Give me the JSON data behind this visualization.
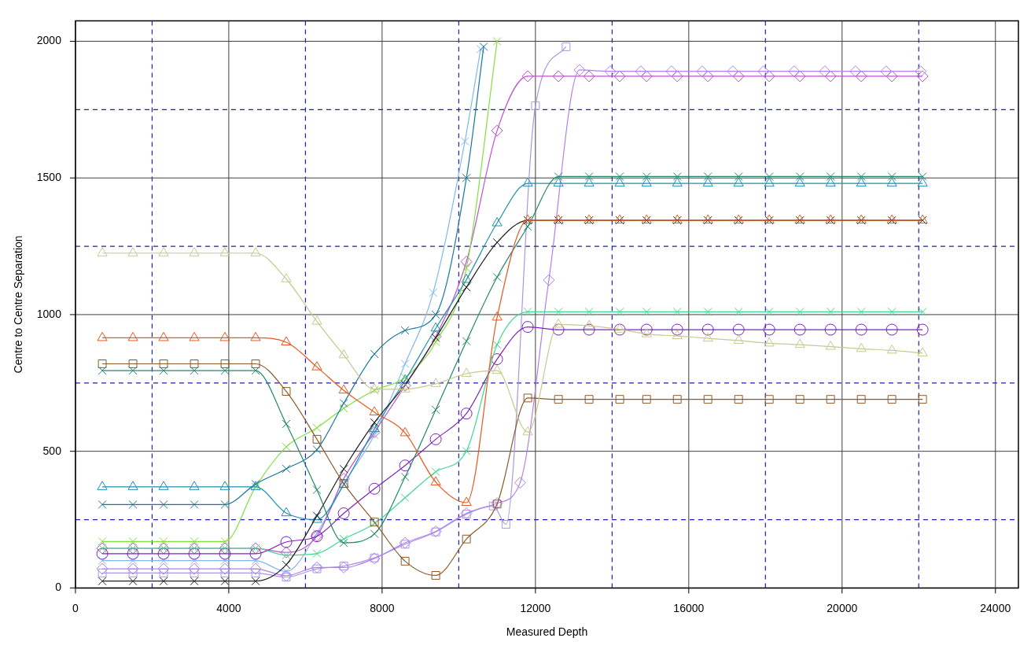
{
  "chart_data": {
    "type": "line",
    "xlabel": "Measured Depth",
    "ylabel": "Centre to Centre Separation",
    "xlim": [
      0,
      24600
    ],
    "ylim": [
      0,
      2075
    ],
    "xticks": [
      0,
      {
        "value": 2000,
        "label": null
      },
      4000,
      {
        "value": 6000,
        "label": null
      },
      8000,
      {
        "value": 10000,
        "label": null
      },
      12000,
      {
        "value": 14000,
        "label": null
      },
      16000,
      {
        "value": 18000,
        "label": null
      },
      20000,
      {
        "value": 22000,
        "label": null
      },
      24000
    ],
    "yticks": [
      0,
      {
        "value": 250,
        "label": null
      },
      500,
      {
        "value": 750,
        "label": null
      },
      1000,
      {
        "value": 1250,
        "label": null
      },
      1500,
      {
        "value": 1750,
        "label": null
      },
      2000
    ],
    "grid": true,
    "legend": false,
    "x": [
      700,
      1500,
      2300,
      3100,
      3900,
      4700,
      5500,
      6300,
      7000,
      7800,
      8600,
      9400,
      10200,
      11000,
      11800,
      12600,
      13400,
      14200,
      14900,
      15700,
      16500,
      17300,
      18100,
      18900,
      19700,
      20500,
      21300,
      22100
    ],
    "series": [
      {
        "color": "#c8c890",
        "marker": "triangle",
        "values": [
          1225,
          1225,
          1225,
          1225,
          1225,
          1225,
          1130,
          975,
          852,
          727,
          727,
          747,
          784,
          795,
          570,
          964,
          959,
          946,
          929,
          922,
          913,
          905,
          895,
          890,
          883,
          875,
          869,
          859
        ]
      },
      {
        "color": "#e8581e",
        "marker": "triangle",
        "values": [
          915,
          915,
          915,
          915,
          915,
          915,
          899,
          808,
          723,
          643,
          567,
          387,
          312,
          990,
          1345,
          1345,
          1345,
          1345,
          1345,
          1345,
          1345,
          1345,
          1345,
          1345,
          1345,
          1345,
          1345,
          1345
        ]
      },
      {
        "color": "#8b5a2b",
        "marker": "square",
        "values": [
          820,
          820,
          820,
          820,
          820,
          820,
          719,
          544,
          382,
          241,
          98,
          46,
          179,
          307,
          695,
          690,
          690,
          690,
          690,
          690,
          690,
          690,
          690,
          690,
          690,
          690,
          690,
          690
        ]
      },
      {
        "color": "#208a6a",
        "marker": "cross",
        "values": [
          795,
          795,
          795,
          795,
          795,
          795,
          600,
          359,
          165,
          198,
          406,
          652,
          903,
          1137,
          1322,
          1505,
          1505,
          1505,
          1505,
          1505,
          1505,
          1505,
          1505,
          1505,
          1505,
          1505,
          1505,
          1505
        ]
      },
      {
        "color": "#202020",
        "marker": "cross",
        "values": [
          25,
          25,
          25,
          25,
          25,
          25,
          85,
          264,
          435,
          605,
          744,
          915,
          1100,
          1264,
          1345,
          1345,
          1345,
          1345,
          1345,
          1345,
          1345,
          1345,
          1345,
          1345,
          1345,
          1345,
          1345,
          1345
        ]
      },
      {
        "color": "#1e90b0",
        "marker": "triangle",
        "values": [
          370,
          370,
          370,
          370,
          370,
          370,
          274,
          250,
          378,
          582,
          760,
          950,
          1128,
          1335,
          1480,
          1480,
          1480,
          1480,
          1480,
          1480,
          1480,
          1480,
          1480,
          1480,
          1480,
          1480,
          1480,
          1480
        ]
      },
      {
        "color": "#1878a0",
        "marker": "cross",
        "x": [
          700,
          1500,
          2300,
          3100,
          3900,
          4700,
          5500,
          6300,
          7000,
          7800,
          8600,
          9400,
          10200,
          10650
        ],
        "values": [
          305,
          305,
          305,
          305,
          305,
          380,
          436,
          506,
          676,
          856,
          942,
          1000,
          1500,
          1980
        ]
      },
      {
        "color": "#80e040",
        "marker": "cross",
        "x": [
          700,
          1500,
          2300,
          3100,
          3900,
          4700,
          5500,
          6300,
          7000,
          7800,
          8600,
          9400,
          10200,
          11000
        ],
        "values": [
          170,
          170,
          170,
          170,
          170,
          370,
          516,
          586,
          657,
          723,
          770,
          900,
          1170,
          2000
        ]
      },
      {
        "color": "#40d890",
        "marker": "cross",
        "values": [
          145,
          145,
          145,
          145,
          145,
          145,
          120,
          126,
          179,
          236,
          330,
          425,
          501,
          890,
          1010,
          1010,
          1010,
          1010,
          1010,
          1010,
          1010,
          1010,
          1010,
          1010,
          1010,
          1010,
          1010,
          1010
        ]
      },
      {
        "color": "#8020c0",
        "marker": "circle",
        "values": [
          125,
          125,
          125,
          125,
          125,
          125,
          168,
          189,
          273,
          363,
          448,
          544,
          638,
          837,
          955,
          945,
          945,
          945,
          945,
          945,
          945,
          945,
          945,
          945,
          945,
          945,
          945,
          945
        ]
      },
      {
        "color": "#b080f0",
        "marker": "diamond",
        "x": [
          700,
          1500,
          2300,
          3100,
          3900,
          4700,
          5500,
          6300,
          7000,
          7800,
          8600,
          9400,
          10200,
          11000,
          11600,
          12350,
          13150,
          13950,
          14750,
          15550,
          16350,
          17150,
          17950,
          18750,
          19550,
          20350,
          21150,
          22050
        ],
        "values": [
          70,
          70,
          70,
          70,
          70,
          70,
          45,
          75,
          75,
          108,
          165,
          207,
          273,
          310,
          385,
          1126,
          1895,
          1890,
          1890,
          1890,
          1890,
          1890,
          1890,
          1890,
          1890,
          1890,
          1890,
          1890
        ]
      },
      {
        "color": "#c050d0",
        "marker": "diamond",
        "values": [
          145,
          145,
          145,
          145,
          145,
          145,
          130,
          190,
          400,
          570,
          740,
          920,
          1194,
          1673,
          1872,
          1872,
          1872,
          1872,
          1872,
          1872,
          1872,
          1872,
          1872,
          1872,
          1872,
          1872,
          1872,
          1872
        ]
      },
      {
        "color": "#a898e0",
        "marker": "square",
        "x": [
          700,
          1500,
          2300,
          3100,
          3900,
          4700,
          5500,
          6300,
          7000,
          7800,
          8600,
          9400,
          10200,
          10900,
          11230,
          12000,
          12800
        ],
        "values": [
          55,
          55,
          55,
          55,
          55,
          55,
          40,
          70,
          80,
          110,
          160,
          205,
          270,
          300,
          233,
          1764,
          1980
        ]
      },
      {
        "color": "#80b8f0",
        "marker": "cross",
        "x": [
          700,
          1500,
          2300,
          3100,
          3900,
          4700,
          5500,
          6300,
          7000,
          7800,
          8600,
          9330,
          10160,
          10570
        ],
        "values": [
          100,
          100,
          100,
          100,
          100,
          100,
          60,
          200,
          380,
          560,
          820,
          1080,
          1634,
          1971
        ]
      }
    ]
  }
}
